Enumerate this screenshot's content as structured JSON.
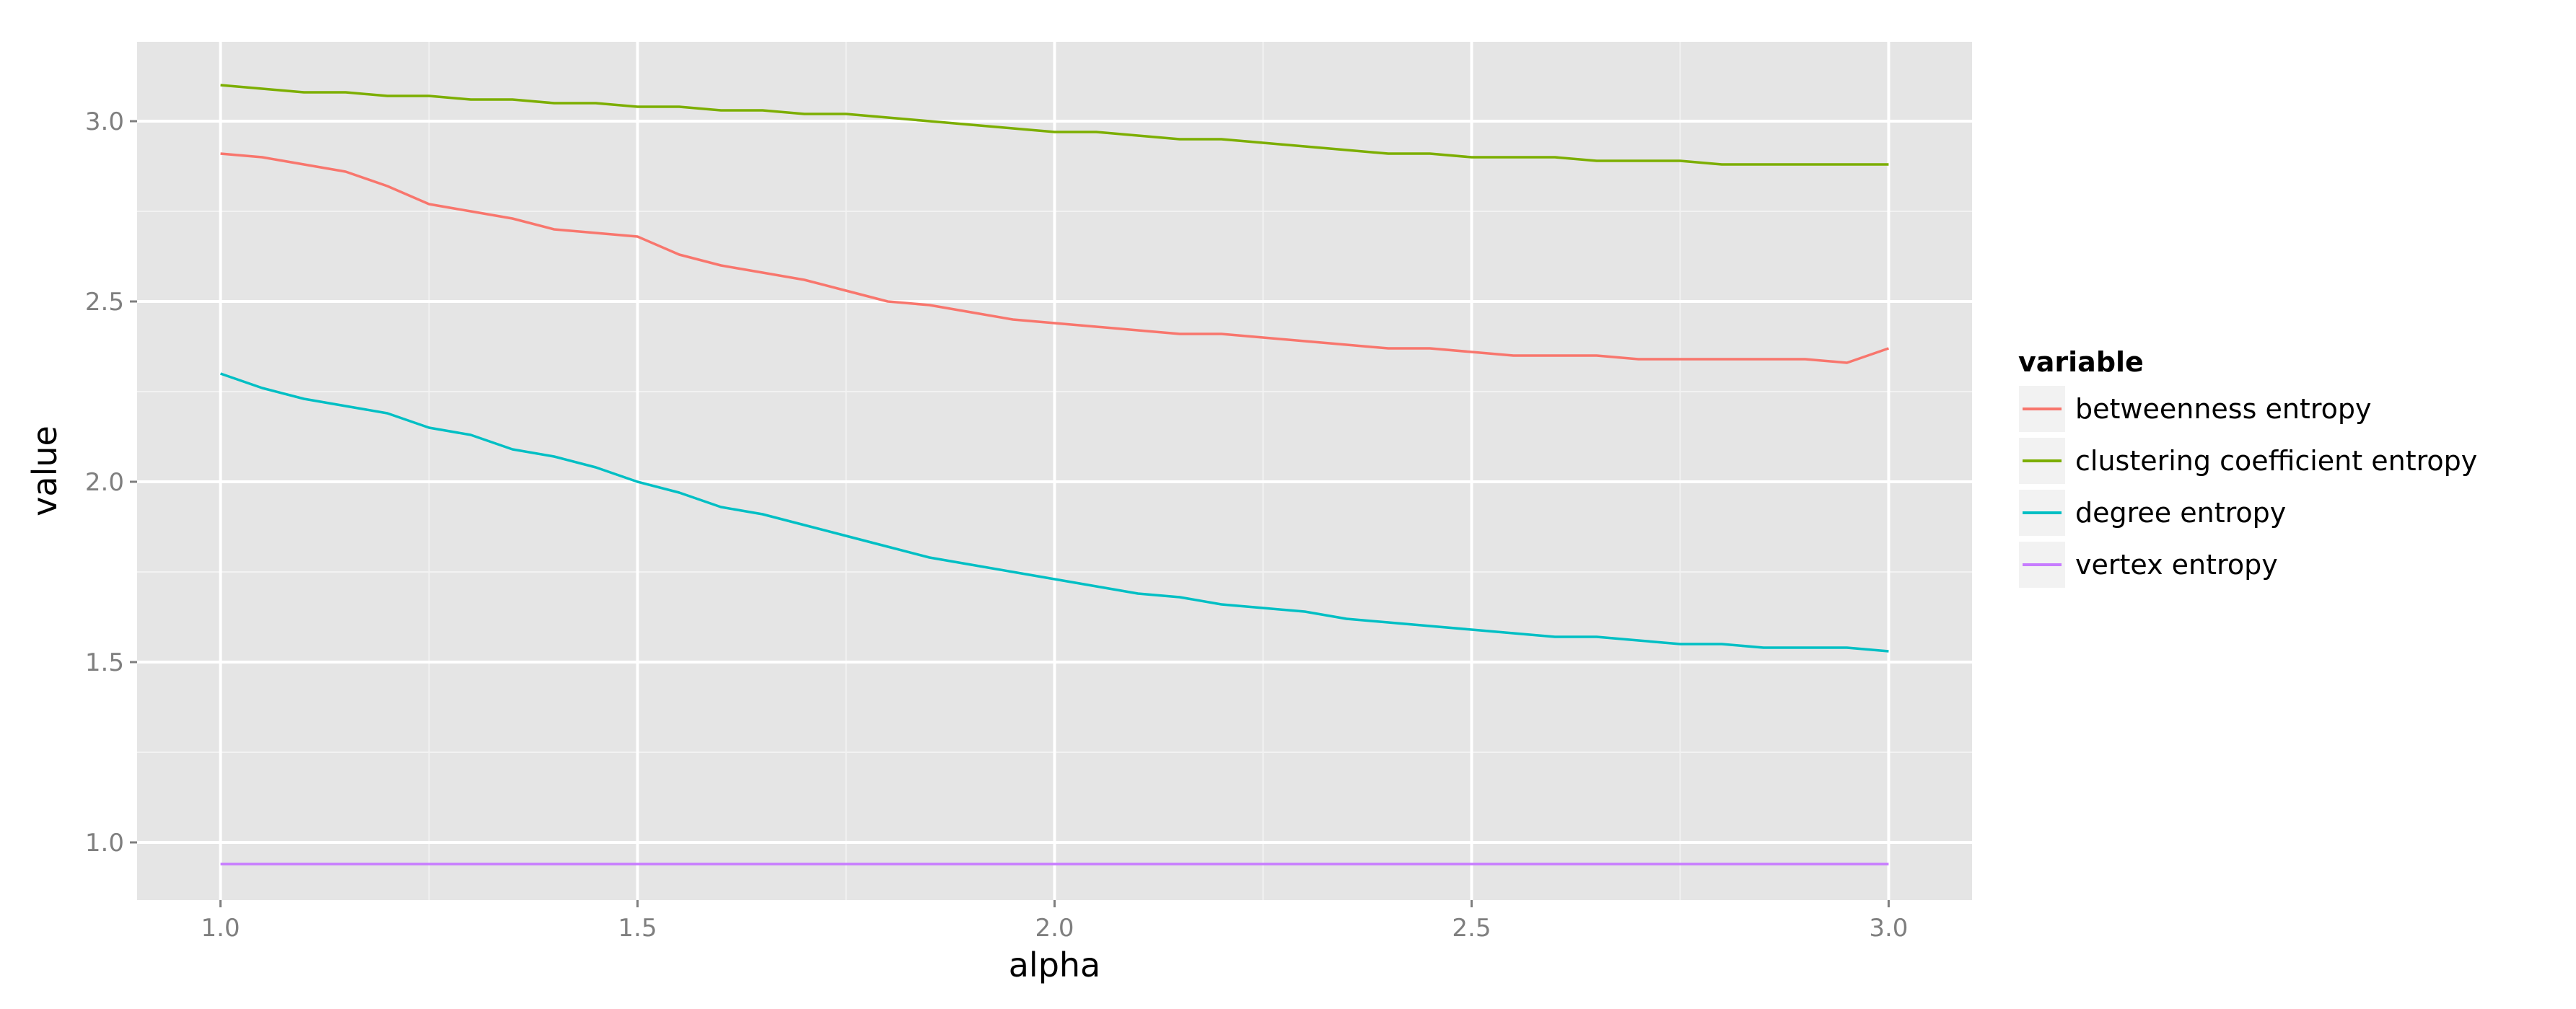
{
  "chart_data": {
    "type": "line",
    "xlabel": "alpha",
    "ylabel": "value",
    "xlim": [
      0.9,
      3.1
    ],
    "ylim": [
      0.84,
      3.22
    ],
    "x_ticks": [
      1.0,
      1.5,
      2.0,
      2.5,
      3.0
    ],
    "x_tick_labels": [
      "1.0",
      "1.5",
      "2.0",
      "2.5",
      "3.0"
    ],
    "y_ticks": [
      1.0,
      1.5,
      2.0,
      2.5,
      3.0
    ],
    "y_tick_labels": [
      "1.0",
      "1.5",
      "2.0",
      "2.5",
      "3.0"
    ],
    "grid": true,
    "legend_title": "variable",
    "legend_position": "right",
    "x": [
      1.0,
      1.05,
      1.1,
      1.15,
      1.2,
      1.25,
      1.3,
      1.35,
      1.4,
      1.45,
      1.5,
      1.55,
      1.6,
      1.65,
      1.7,
      1.75,
      1.8,
      1.85,
      1.9,
      1.95,
      2.0,
      2.05,
      2.1,
      2.15,
      2.2,
      2.25,
      2.3,
      2.35,
      2.4,
      2.45,
      2.5,
      2.55,
      2.6,
      2.65,
      2.7,
      2.75,
      2.8,
      2.85,
      2.9,
      2.95,
      3.0
    ],
    "series": [
      {
        "name": "betweenness entropy",
        "color": "#f8766d",
        "values": [
          2.91,
          2.9,
          2.88,
          2.86,
          2.82,
          2.77,
          2.75,
          2.73,
          2.7,
          2.69,
          2.68,
          2.63,
          2.6,
          2.58,
          2.56,
          2.53,
          2.5,
          2.49,
          2.47,
          2.45,
          2.44,
          2.43,
          2.42,
          2.41,
          2.41,
          2.4,
          2.39,
          2.38,
          2.37,
          2.37,
          2.36,
          2.35,
          2.35,
          2.35,
          2.34,
          2.34,
          2.34,
          2.34,
          2.34,
          2.33,
          2.37
        ]
      },
      {
        "name": "clustering coefficient entropy",
        "color": "#7cae00",
        "values": [
          3.1,
          3.09,
          3.08,
          3.08,
          3.07,
          3.07,
          3.06,
          3.06,
          3.05,
          3.05,
          3.04,
          3.04,
          3.03,
          3.03,
          3.02,
          3.02,
          3.01,
          3.0,
          2.99,
          2.98,
          2.97,
          2.97,
          2.96,
          2.95,
          2.95,
          2.94,
          2.93,
          2.92,
          2.91,
          2.91,
          2.9,
          2.9,
          2.9,
          2.89,
          2.89,
          2.89,
          2.88,
          2.88,
          2.88,
          2.88,
          2.88
        ]
      },
      {
        "name": "degree entropy",
        "color": "#00bfc4",
        "values": [
          2.3,
          2.26,
          2.23,
          2.21,
          2.19,
          2.15,
          2.13,
          2.09,
          2.07,
          2.04,
          2.0,
          1.97,
          1.93,
          1.91,
          1.88,
          1.85,
          1.82,
          1.79,
          1.77,
          1.75,
          1.73,
          1.71,
          1.69,
          1.68,
          1.66,
          1.65,
          1.64,
          1.62,
          1.61,
          1.6,
          1.59,
          1.58,
          1.57,
          1.57,
          1.56,
          1.55,
          1.55,
          1.54,
          1.54,
          1.54,
          1.53
        ]
      },
      {
        "name": "vertex entropy",
        "color": "#c77cff",
        "values": [
          0.94,
          0.94,
          0.94,
          0.94,
          0.94,
          0.94,
          0.94,
          0.94,
          0.94,
          0.94,
          0.94,
          0.94,
          0.94,
          0.94,
          0.94,
          0.94,
          0.94,
          0.94,
          0.94,
          0.94,
          0.94,
          0.94,
          0.94,
          0.94,
          0.94,
          0.94,
          0.94,
          0.94,
          0.94,
          0.94,
          0.94,
          0.94,
          0.94,
          0.94,
          0.94,
          0.94,
          0.94,
          0.94,
          0.94,
          0.94,
          0.94
        ]
      }
    ],
    "panel_background": "#e5e5e5",
    "grid_color": "#ffffff"
  }
}
